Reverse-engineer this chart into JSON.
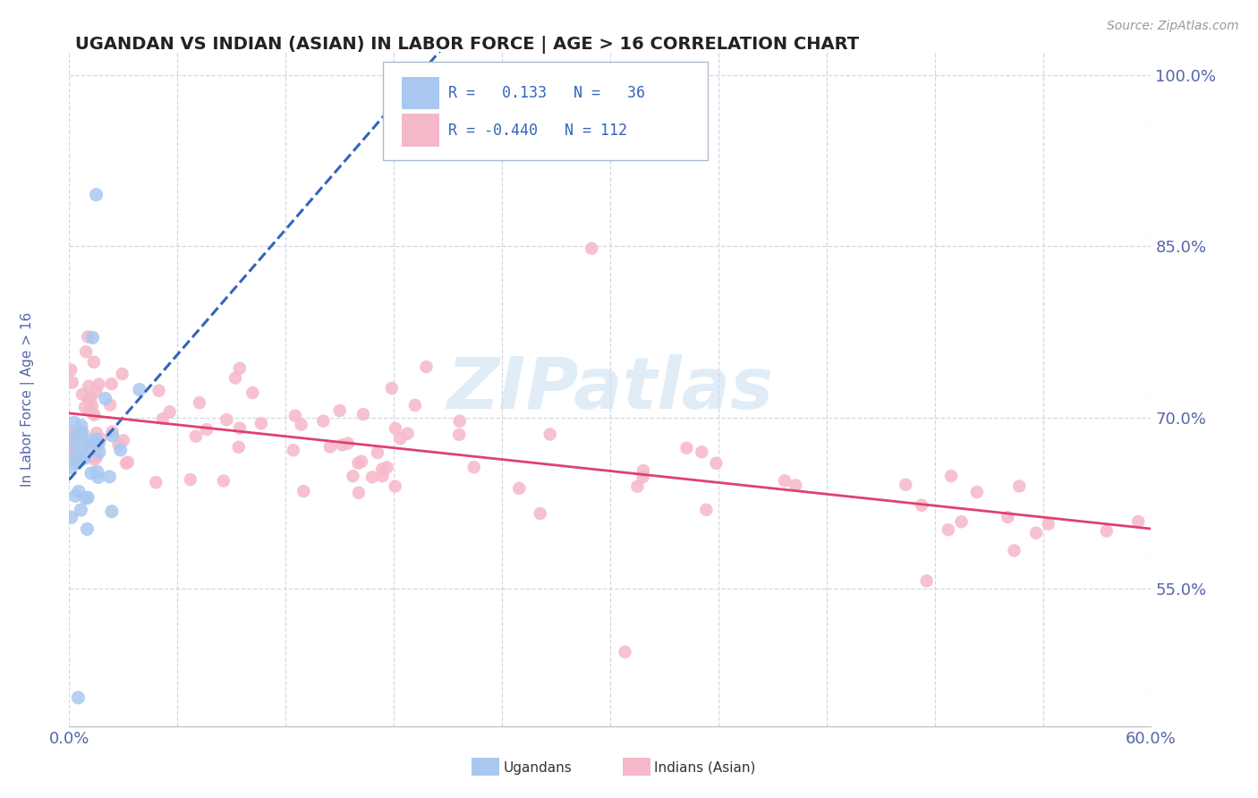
{
  "title": "UGANDAN VS INDIAN (ASIAN) IN LABOR FORCE | AGE > 16 CORRELATION CHART",
  "source_text": "Source: ZipAtlas.com",
  "ylabel": "In Labor Force | Age > 16",
  "xlim": [
    0.0,
    0.6
  ],
  "ylim": [
    0.43,
    1.02
  ],
  "ytick_positions": [
    0.55,
    0.7,
    0.85,
    1.0
  ],
  "ytick_labels": [
    "55.0%",
    "70.0%",
    "85.0%",
    "100.0%"
  ],
  "ugandan_color": "#A8C8F0",
  "indian_color": "#F5B8C8",
  "ugandan_trend_color": "#3366BB",
  "indian_trend_color": "#E04070",
  "legend_text_color": "#3366BB",
  "watermark_color": "#C8DDF0",
  "background_color": "#FFFFFF",
  "grid_color": "#CCCCDD",
  "title_color": "#222222",
  "axis_label_color": "#5566AA",
  "tick_label_color": "#5566AA",
  "source_color": "#999999"
}
